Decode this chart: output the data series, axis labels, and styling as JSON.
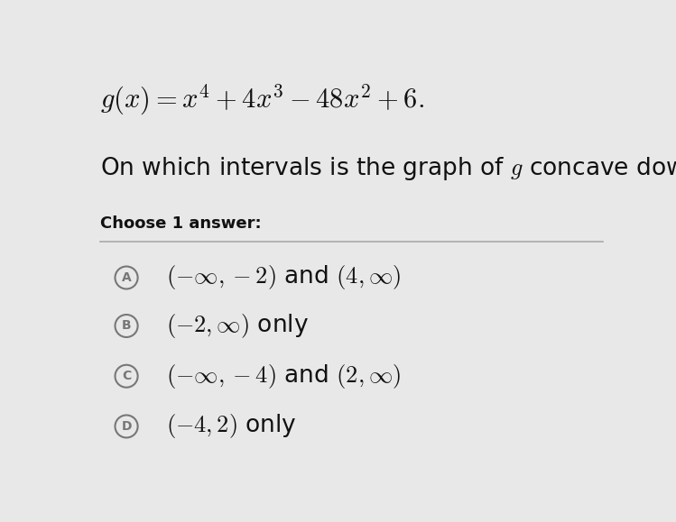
{
  "background_color": "#e8e8e8",
  "title_fontsize": 22,
  "question_fontsize": 19,
  "instruction_fontsize": 13,
  "choice_fontsize": 19,
  "label_fontsize": 10,
  "text_color": "#111111",
  "circle_color": "#777777",
  "divider_color": "#aaaaaa",
  "choices": [
    {
      "label": "A",
      "text": "$(-\\infty, -2)$ and $(4, \\infty)$"
    },
    {
      "label": "B",
      "text": "$(-2, \\infty)$ only"
    },
    {
      "label": "C",
      "text": "$(-\\infty, -4)$ and $(2, \\infty)$"
    },
    {
      "label": "D",
      "text": "$(-4, 2)$ only"
    }
  ]
}
